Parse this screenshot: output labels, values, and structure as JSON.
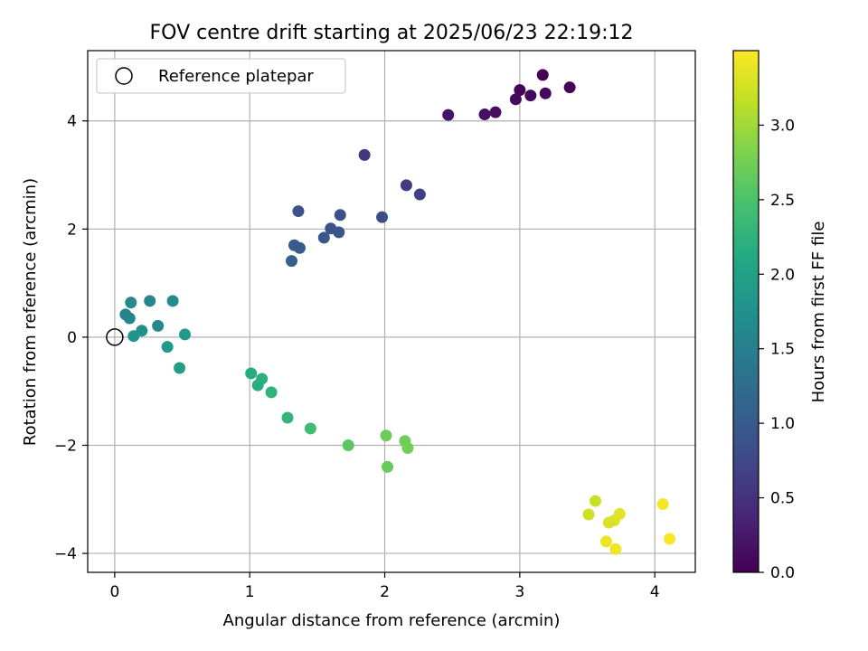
{
  "chart_data": {
    "type": "scatter",
    "title": "FOV centre drift starting at 2025/06/23 22:19:12",
    "xlabel": "Angular distance from reference (arcmin)",
    "ylabel": "Rotation from reference (arcmin)",
    "xlim": [
      -0.2,
      4.3
    ],
    "ylim": [
      -4.35,
      5.3
    ],
    "xticks": [
      0,
      1,
      2,
      3,
      4
    ],
    "yticks": [
      -4,
      -2,
      0,
      2,
      4
    ],
    "xtick_labels": [
      "0",
      "1",
      "2",
      "3",
      "4"
    ],
    "ytick_labels": [
      "−4",
      "−2",
      "0",
      "2",
      "4"
    ],
    "grid": true,
    "legend": {
      "placement": "top-left",
      "entries": [
        "Reference platepar"
      ]
    },
    "reference_point": {
      "x": 0,
      "y": 0
    },
    "colorbar": {
      "label": "Hours from first FF file",
      "colormap": "viridis",
      "range": [
        0,
        3.5
      ],
      "ticks": [
        0.0,
        0.5,
        1.0,
        1.5,
        2.0,
        2.5,
        3.0
      ],
      "tick_labels": [
        "0.0",
        "0.5",
        "1.0",
        "1.5",
        "2.0",
        "2.5",
        "3.0"
      ]
    },
    "points": [
      {
        "x": 3.17,
        "y": 4.85,
        "t": 0.0
      },
      {
        "x": 3.0,
        "y": 4.57,
        "t": 0.03
      },
      {
        "x": 3.37,
        "y": 4.62,
        "t": 0.05
      },
      {
        "x": 3.19,
        "y": 4.51,
        "t": 0.07
      },
      {
        "x": 3.08,
        "y": 4.47,
        "t": 0.08
      },
      {
        "x": 2.97,
        "y": 4.4,
        "t": 0.1
      },
      {
        "x": 2.82,
        "y": 4.16,
        "t": 0.13
      },
      {
        "x": 2.74,
        "y": 4.12,
        "t": 0.15
      },
      {
        "x": 2.47,
        "y": 4.11,
        "t": 0.18
      },
      {
        "x": 2.26,
        "y": 2.64,
        "t": 0.65
      },
      {
        "x": 2.16,
        "y": 2.81,
        "t": 0.6
      },
      {
        "x": 1.85,
        "y": 3.37,
        "t": 0.55
      },
      {
        "x": 1.98,
        "y": 2.22,
        "t": 0.8
      },
      {
        "x": 1.67,
        "y": 2.26,
        "t": 0.85
      },
      {
        "x": 1.6,
        "y": 2.01,
        "t": 0.9
      },
      {
        "x": 1.66,
        "y": 1.94,
        "t": 0.92
      },
      {
        "x": 1.55,
        "y": 1.84,
        "t": 0.95
      },
      {
        "x": 1.36,
        "y": 2.33,
        "t": 0.88
      },
      {
        "x": 1.33,
        "y": 1.7,
        "t": 1.0
      },
      {
        "x": 1.37,
        "y": 1.65,
        "t": 1.02
      },
      {
        "x": 1.31,
        "y": 1.41,
        "t": 1.05
      },
      {
        "x": 0.12,
        "y": 0.64,
        "t": 1.65
      },
      {
        "x": 0.26,
        "y": 0.67,
        "t": 1.6
      },
      {
        "x": 0.43,
        "y": 0.67,
        "t": 1.7
      },
      {
        "x": 0.08,
        "y": 0.42,
        "t": 1.55
      },
      {
        "x": 0.11,
        "y": 0.35,
        "t": 1.58
      },
      {
        "x": 0.32,
        "y": 0.21,
        "t": 1.62
      },
      {
        "x": 0.2,
        "y": 0.12,
        "t": 1.75
      },
      {
        "x": 0.14,
        "y": 0.02,
        "t": 1.8
      },
      {
        "x": 0.52,
        "y": 0.05,
        "t": 1.85
      },
      {
        "x": 0.39,
        "y": -0.18,
        "t": 1.88
      },
      {
        "x": 0.48,
        "y": -0.57,
        "t": 1.95
      },
      {
        "x": 1.01,
        "y": -0.67,
        "t": 2.15
      },
      {
        "x": 1.09,
        "y": -0.77,
        "t": 2.2
      },
      {
        "x": 1.06,
        "y": -0.89,
        "t": 2.18
      },
      {
        "x": 1.16,
        "y": -1.02,
        "t": 2.25
      },
      {
        "x": 1.28,
        "y": -1.49,
        "t": 2.3
      },
      {
        "x": 1.45,
        "y": -1.69,
        "t": 2.4
      },
      {
        "x": 1.73,
        "y": -2.0,
        "t": 2.6
      },
      {
        "x": 2.01,
        "y": -1.82,
        "t": 2.7
      },
      {
        "x": 2.15,
        "y": -1.92,
        "t": 2.72
      },
      {
        "x": 2.17,
        "y": -2.05,
        "t": 2.75
      },
      {
        "x": 2.02,
        "y": -2.4,
        "t": 2.68
      },
      {
        "x": 3.56,
        "y": -3.03,
        "t": 3.2
      },
      {
        "x": 3.51,
        "y": -3.28,
        "t": 3.25
      },
      {
        "x": 3.74,
        "y": -3.27,
        "t": 3.35
      },
      {
        "x": 3.7,
        "y": -3.39,
        "t": 3.33
      },
      {
        "x": 3.66,
        "y": -3.43,
        "t": 3.3
      },
      {
        "x": 3.64,
        "y": -3.78,
        "t": 3.4
      },
      {
        "x": 3.71,
        "y": -3.92,
        "t": 3.42
      },
      {
        "x": 4.06,
        "y": -3.09,
        "t": 3.45
      },
      {
        "x": 4.11,
        "y": -3.73,
        "t": 3.48
      }
    ]
  }
}
